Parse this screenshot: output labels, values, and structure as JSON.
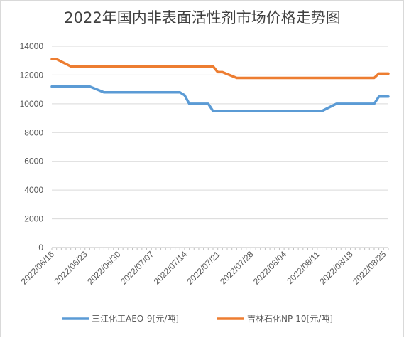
{
  "chart_data": {
    "type": "line",
    "title": "2022年国内非表面活性剂市场价格走势图",
    "ylim": [
      0,
      14000
    ],
    "yticks": [
      0,
      2000,
      4000,
      6000,
      8000,
      10000,
      12000,
      14000
    ],
    "x_start": "2022/06/16",
    "x_end": "2022/08/26",
    "xtick_labels": [
      "2022/06/16",
      "2022/06/23",
      "2022/06/30",
      "2022/07/07",
      "2022/07/14",
      "2022/07/21",
      "2022/07/28",
      "2022/08/04",
      "2022/08/11",
      "2022/08/18",
      "2022/08/25"
    ],
    "grid": "horizontal",
    "legend_position": "bottom",
    "series": [
      {
        "name": "三江化工AEO-9[元/吨]",
        "color": "#5b9bd5",
        "points": [
          [
            "2022/06/16",
            11200
          ],
          [
            "2022/06/24",
            11200
          ],
          [
            "2022/06/27",
            10800
          ],
          [
            "2022/07/13",
            10800
          ],
          [
            "2022/07/14",
            10600
          ],
          [
            "2022/07/15",
            10000
          ],
          [
            "2022/07/19",
            10000
          ],
          [
            "2022/07/20",
            9500
          ],
          [
            "2022/08/12",
            9500
          ],
          [
            "2022/08/15",
            10000
          ],
          [
            "2022/08/23",
            10000
          ],
          [
            "2022/08/24",
            10500
          ],
          [
            "2022/08/26",
            10500
          ]
        ]
      },
      {
        "name": "吉林石化NP-10[元/吨]",
        "color": "#ed7d31",
        "points": [
          [
            "2022/06/16",
            13100
          ],
          [
            "2022/06/17",
            13100
          ],
          [
            "2022/06/20",
            12600
          ],
          [
            "2022/07/20",
            12600
          ],
          [
            "2022/07/21",
            12200
          ],
          [
            "2022/07/22",
            12200
          ],
          [
            "2022/07/25",
            11800
          ],
          [
            "2022/08/23",
            11800
          ],
          [
            "2022/08/24",
            12100
          ],
          [
            "2022/08/26",
            12100
          ]
        ]
      }
    ]
  }
}
